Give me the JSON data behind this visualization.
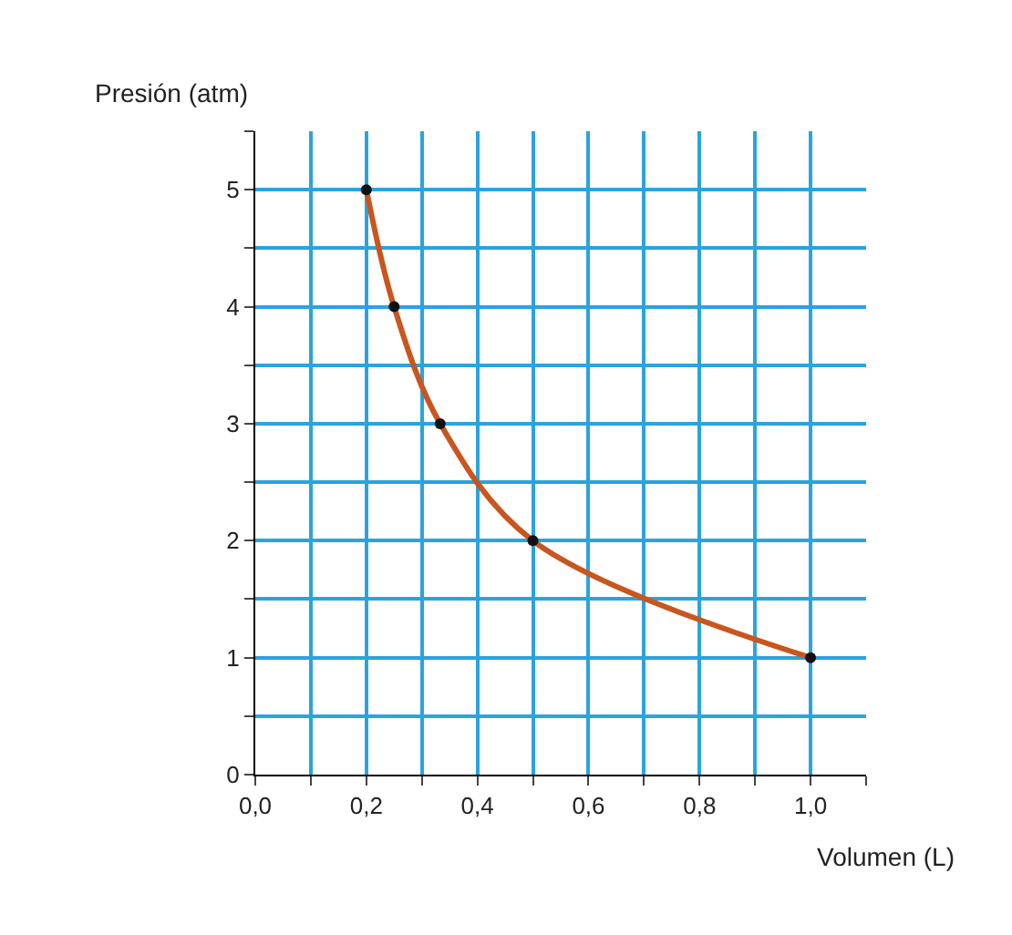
{
  "chart_data": {
    "type": "line",
    "xlabel": "Volumen (L)",
    "ylabel": "Presión (atm)",
    "x": [
      0.2,
      0.25,
      0.333,
      0.5,
      1.0
    ],
    "series": [
      {
        "color": "#c8561e",
        "values": [
          5,
          4,
          3,
          2,
          1
        ]
      }
    ],
    "marker": "circle",
    "grid": true,
    "xlim": [
      0,
      1.1
    ],
    "ylim": [
      0,
      5.5
    ],
    "xticks": [
      {
        "value": 0,
        "label": "0,0"
      },
      {
        "value": 0.1,
        "label": null
      },
      {
        "value": 0.2,
        "label": "0,2"
      },
      {
        "value": 0.3,
        "label": null
      },
      {
        "value": 0.4,
        "label": "0,4"
      },
      {
        "value": 0.5,
        "label": null
      },
      {
        "value": 0.6,
        "label": "0,6"
      },
      {
        "value": 0.7,
        "label": null
      },
      {
        "value": 0.8,
        "label": "0,8"
      },
      {
        "value": 0.9,
        "label": null
      },
      {
        "value": 1.0,
        "label": "1,0"
      },
      {
        "value": 1.1,
        "label": null
      }
    ],
    "yticks": [
      0,
      {
        "value": 0.5,
        "label": null
      },
      1,
      {
        "value": 1.5,
        "label": null
      },
      2,
      {
        "value": 2.5,
        "label": null
      },
      3,
      {
        "value": 3.5,
        "label": null
      },
      4,
      {
        "value": 4.5,
        "label": null
      },
      5,
      {
        "value": 5.5,
        "label": null
      }
    ]
  }
}
